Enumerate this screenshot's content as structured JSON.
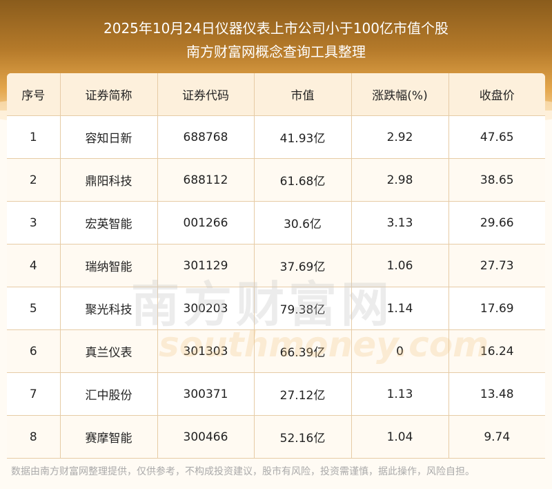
{
  "header": {
    "title": "2025年10月24日仪器仪表上市公司小于100亿市值个股",
    "subtitle": "南方财富网概念查询工具整理"
  },
  "table": {
    "columns": [
      "序号",
      "证券简称",
      "证券代码",
      "市值",
      "涨跌幅(%)",
      "收盘价"
    ],
    "rows": [
      [
        "1",
        "容知日新",
        "688768",
        "41.93亿",
        "2.92",
        "47.65"
      ],
      [
        "2",
        "鼎阳科技",
        "688112",
        "61.68亿",
        "2.98",
        "38.65"
      ],
      [
        "3",
        "宏英智能",
        "001266",
        "30.6亿",
        "3.13",
        "29.66"
      ],
      [
        "4",
        "瑞纳智能",
        "301129",
        "37.69亿",
        "1.06",
        "27.73"
      ],
      [
        "5",
        "聚光科技",
        "300203",
        "79.38亿",
        "1.14",
        "17.69"
      ],
      [
        "6",
        "真兰仪表",
        "301303",
        "66.39亿",
        "0",
        "16.24"
      ],
      [
        "7",
        "汇中股份",
        "300371",
        "27.12亿",
        "1.13",
        "13.48"
      ],
      [
        "8",
        "赛摩智能",
        "300466",
        "52.16亿",
        "1.04",
        "9.74"
      ]
    ]
  },
  "watermark": {
    "cn": "南方财富网",
    "en": "southmoney.com"
  },
  "footer": {
    "disclaimer": "数据由南方财富网整理提供，仅供参考，不构成投资建议，股市有风险，投资需谨慎，据此操作，风险自担。"
  }
}
